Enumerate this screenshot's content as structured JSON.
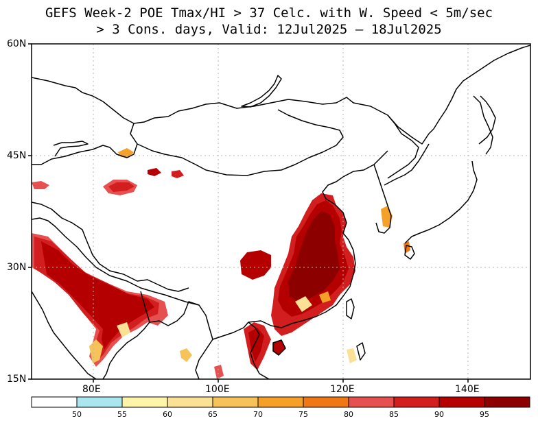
{
  "title": {
    "line1": "GEFS Week-2 POE Tmax/HI > 37 Celc. with W. Speed < 5m/sec",
    "line2": "> 3 Cons. days, Valid: 12Jul2025 – 18Jul2025"
  },
  "axes": {
    "lat_labels": [
      "60N",
      "45N",
      "30N",
      "15N"
    ],
    "lon_labels": [
      "80E",
      "100E",
      "120E",
      "140E"
    ]
  },
  "colorbar": {
    "labels": [
      "50",
      "55",
      "60",
      "65",
      "70",
      "75",
      "80",
      "85",
      "90",
      "95"
    ],
    "colors": [
      "#ffffff",
      "#aae6f0",
      "#fff5aa",
      "#fae196",
      "#f5c35a",
      "#f5a028",
      "#f07814",
      "#e65050",
      "#d21e1e",
      "#b40000",
      "#8c0000"
    ]
  },
  "colors": {
    "coastline": "#000000",
    "gridline": "#b4b4b4"
  }
}
